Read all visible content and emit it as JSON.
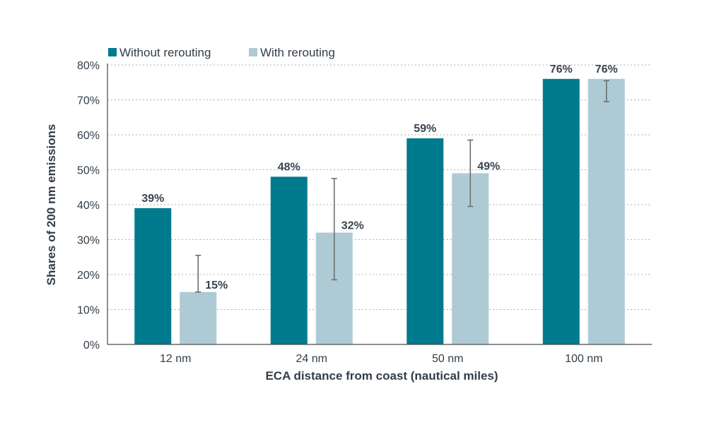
{
  "chart_data": {
    "type": "bar",
    "categories": [
      "12 nm",
      "24 nm",
      "50 nm",
      "100 nm"
    ],
    "series": [
      {
        "name": "Without rerouting",
        "color": "#007b8d",
        "values": [
          39,
          48,
          59,
          76
        ],
        "labels": [
          "39%",
          "48%",
          "59%",
          "76%"
        ]
      },
      {
        "name": "With rerouting",
        "color": "#aecbd5",
        "values": [
          15,
          32,
          49,
          76
        ],
        "labels": [
          "15%",
          "32%",
          "49%",
          "76%"
        ],
        "error_low": [
          15,
          18.5,
          39.5,
          69.5
        ],
        "error_high": [
          25.5,
          47.5,
          58.5,
          75.5
        ]
      }
    ],
    "xlabel": "ECA distance from coast (nautical miles)",
    "ylabel": "Shares of 200 nm emissions",
    "ylim": [
      0,
      80
    ],
    "yticks": [
      "0%",
      "10%",
      "20%",
      "30%",
      "40%",
      "50%",
      "60%",
      "70%",
      "80%"
    ],
    "grid": "horizontal dotted",
    "legend_position": "top-left",
    "error_bar_color": "#6e6e6e",
    "axis_color": "#4a4a4a",
    "grid_color": "#b0b0b0"
  }
}
